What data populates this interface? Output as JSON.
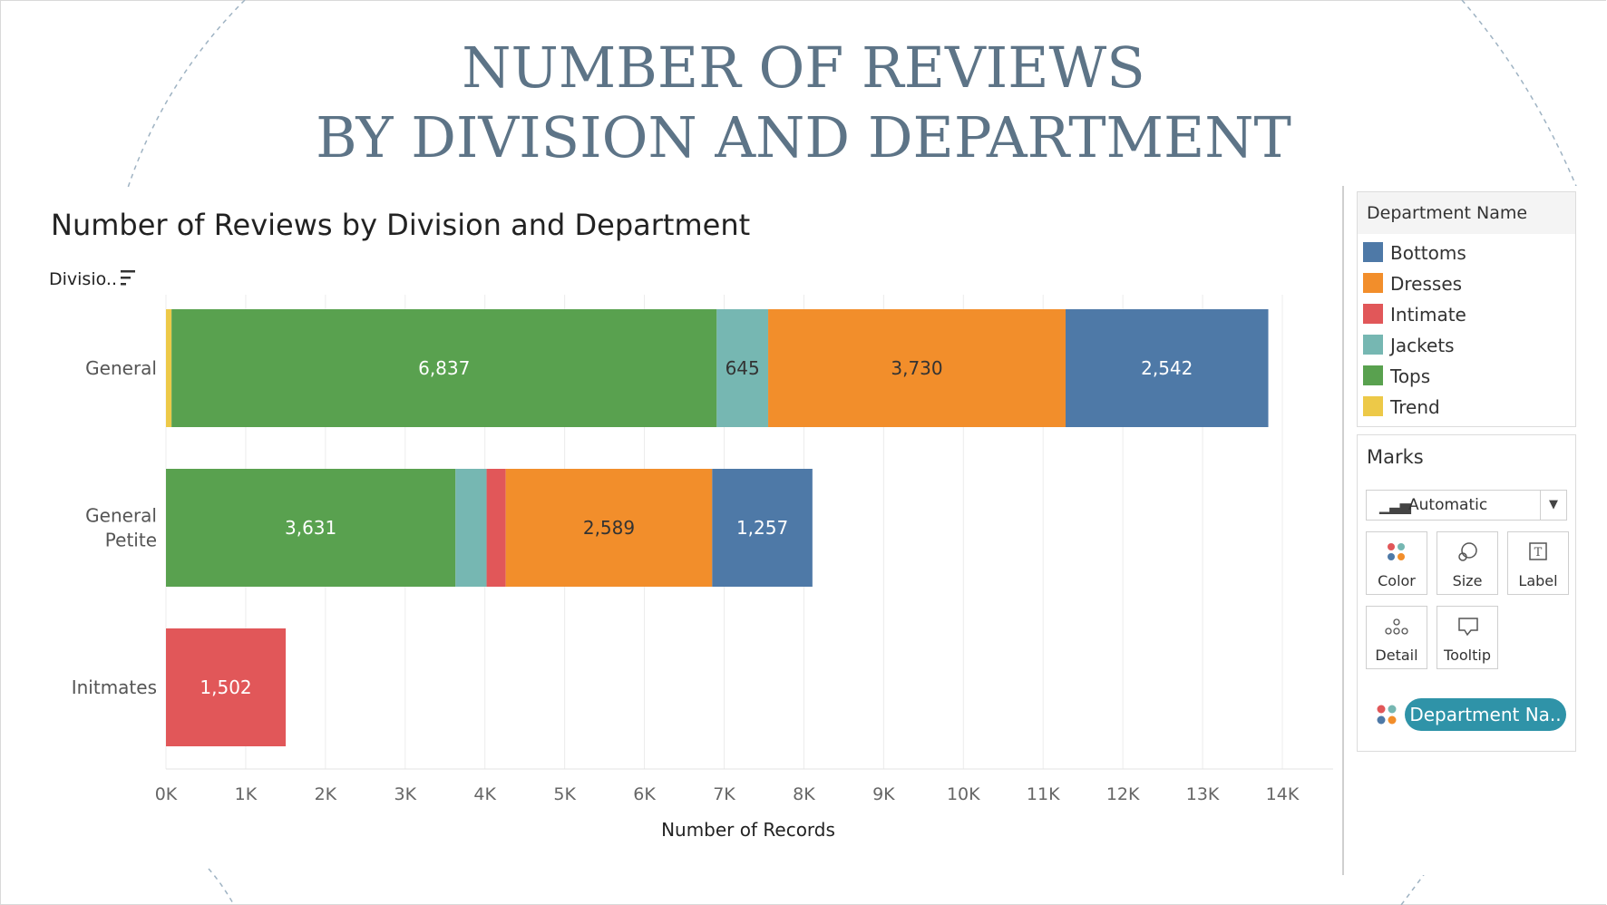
{
  "slide": {
    "title_line1": "NUMBER OF REVIEWS",
    "title_line2": "BY DIVISION AND DEPARTMENT"
  },
  "chart_data": {
    "type": "bar",
    "orientation": "horizontal",
    "stacked": true,
    "title": "Number of Reviews by Division and Department",
    "ylabel": "Divisio..",
    "xlabel": "Number of Records",
    "categories": [
      "General",
      "General Petite",
      "Initmates"
    ],
    "category_label_lines": [
      [
        "General"
      ],
      [
        "General",
        "Petite"
      ],
      [
        "Initmates"
      ]
    ],
    "xlim": [
      0,
      14000
    ],
    "xticks": [
      0,
      1000,
      2000,
      3000,
      4000,
      5000,
      6000,
      7000,
      8000,
      9000,
      10000,
      11000,
      12000,
      13000,
      14000
    ],
    "xtick_labels": [
      "0K",
      "1K",
      "2K",
      "3K",
      "4K",
      "5K",
      "6K",
      "7K",
      "8K",
      "9K",
      "10K",
      "11K",
      "12K",
      "13K",
      "14K"
    ],
    "grid": true,
    "legend_title": "Department Name",
    "legend_position": "right",
    "series": [
      {
        "name": "Trend",
        "color": "#edc948",
        "values": [
          70,
          0,
          0
        ],
        "labels": [
          "",
          "",
          ""
        ]
      },
      {
        "name": "Tops",
        "color": "#59a14f",
        "values": [
          6837,
          3631,
          0
        ],
        "labels": [
          "6,837",
          "3,631",
          ""
        ]
      },
      {
        "name": "Jackets",
        "color": "#76b7b2",
        "values": [
          645,
          390,
          0
        ],
        "labels": [
          "645",
          "",
          ""
        ]
      },
      {
        "name": "Intimate",
        "color": "#e15759",
        "values": [
          0,
          240,
          1502
        ],
        "labels": [
          "",
          "",
          "1,502"
        ]
      },
      {
        "name": "Dresses",
        "color": "#f28e2b",
        "values": [
          3730,
          2589,
          0
        ],
        "labels": [
          "3,730",
          "2,589",
          ""
        ]
      },
      {
        "name": "Bottoms",
        "color": "#4e79a7",
        "values": [
          2542,
          1257,
          0
        ],
        "labels": [
          "2,542",
          "1,257",
          ""
        ]
      }
    ]
  },
  "legend": {
    "title": "Department Name",
    "items": [
      {
        "label": "Bottoms",
        "color": "#4e79a7"
      },
      {
        "label": "Dresses",
        "color": "#f28e2b"
      },
      {
        "label": "Intimate",
        "color": "#e15759"
      },
      {
        "label": "Jackets",
        "color": "#76b7b2"
      },
      {
        "label": "Tops",
        "color": "#59a14f"
      },
      {
        "label": "Trend",
        "color": "#edc948"
      }
    ]
  },
  "marks": {
    "title": "Marks",
    "mark_type": "Automatic",
    "cards": [
      {
        "label": "Color",
        "icon": "color-dots-icon"
      },
      {
        "label": "Size",
        "icon": "size-icon"
      },
      {
        "label": "Label",
        "icon": "label-icon"
      },
      {
        "label": "Detail",
        "icon": "detail-icon"
      },
      {
        "label": "Tooltip",
        "icon": "tooltip-icon"
      }
    ],
    "color_pill": "Department Na.."
  }
}
